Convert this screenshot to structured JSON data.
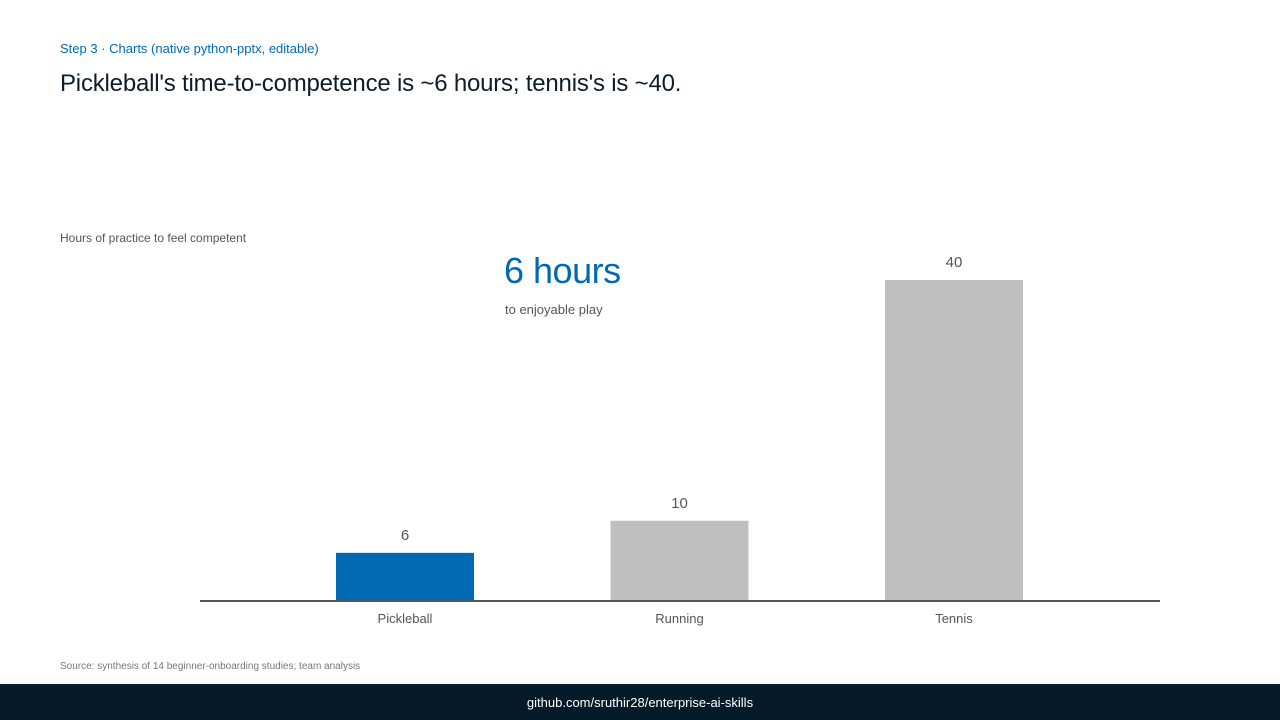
{
  "header": {
    "eyebrow": "Step 3 · Charts (native python-pptx, editable)",
    "title": "Pickleball's time-to-competence is ~6 hours; tennis's is ~40."
  },
  "callout": {
    "value": "6 hours",
    "subtitle": "to enjoyable play"
  },
  "chart_data": {
    "type": "bar",
    "title": "",
    "caption": "Hours of practice to feel competent",
    "categories": [
      "Pickleball",
      "Running",
      "Tennis"
    ],
    "values": [
      6,
      10,
      40
    ],
    "data_labels": [
      "6",
      "10",
      "40"
    ],
    "xlabel": "",
    "ylabel": "",
    "ylim": [
      0,
      40
    ],
    "grid": false,
    "legend": "none",
    "colors": {
      "highlight": "#0069b4",
      "default": "#bfbfbf",
      "axis": "#555555"
    },
    "highlight_index": 0
  },
  "source": "Source: synthesis of 14 beginner-onboarding studies; team analysis",
  "footer": {
    "text": "github.com/sruthir28/enterprise-ai-skills"
  }
}
